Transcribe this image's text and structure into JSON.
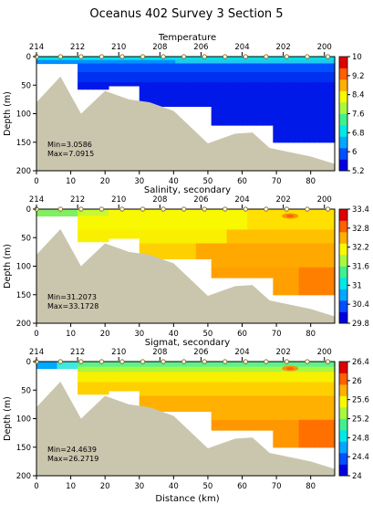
{
  "figure_title": "Oceanus 402 Survey 3 Section 5",
  "chart_data": [
    {
      "type": "heatmap",
      "title": "Temperature",
      "xlabel": "",
      "ylabel": "Depth (m)",
      "xlim": [
        0,
        87
      ],
      "ylim": [
        200,
        0
      ],
      "x_ticks": [
        0,
        10,
        20,
        30,
        40,
        50,
        60,
        70,
        80
      ],
      "y_ticks": [
        0,
        50,
        100,
        150,
        200
      ],
      "station_ticks": [
        "214",
        "212",
        "210",
        "208",
        "206",
        "204",
        "202",
        "200"
      ],
      "stations_km": [
        0,
        7,
        13,
        19,
        25,
        31,
        37,
        43,
        49,
        55,
        61,
        67,
        73,
        79,
        85
      ],
      "bottom_profile": [
        [
          0,
          80
        ],
        [
          7,
          35
        ],
        [
          13,
          100
        ],
        [
          20,
          60
        ],
        [
          27,
          75
        ],
        [
          33,
          80
        ],
        [
          40,
          95
        ],
        [
          50,
          152
        ],
        [
          58,
          135
        ],
        [
          63,
          133
        ],
        [
          68,
          160
        ],
        [
          80,
          175
        ],
        [
          87,
          188
        ]
      ],
      "data_mask_bottom": [
        [
          0,
          0
        ],
        [
          12,
          0
        ],
        [
          12,
          55
        ],
        [
          20,
          55
        ],
        [
          20,
          50
        ],
        [
          30,
          50
        ],
        [
          30,
          85
        ],
        [
          50,
          85
        ],
        [
          50,
          120
        ],
        [
          68,
          120
        ],
        [
          68,
          150
        ],
        [
          87,
          150
        ]
      ],
      "colorbar_ticks": [
        "10",
        "9.2",
        "8.4",
        "7.6",
        "6.8",
        "6",
        "5.2"
      ],
      "colorbar_colors": [
        "#0000e0",
        "#0050ff",
        "#00a8ff",
        "#00e8e8",
        "#40f090",
        "#a8f840",
        "#f8f800",
        "#ffb000",
        "#ff6000",
        "#e00000"
      ],
      "vmin": 5.2,
      "vmax": 10,
      "annotation": [
        "Min=3.0586",
        "Max=7.0915"
      ],
      "pattern": "temperature"
    },
    {
      "type": "heatmap",
      "title": "Salinity, secondary",
      "xlabel": "",
      "ylabel": "Depth (m)",
      "xlim": [
        0,
        87
      ],
      "ylim": [
        200,
        0
      ],
      "x_ticks": [
        0,
        10,
        20,
        30,
        40,
        50,
        60,
        70,
        80
      ],
      "y_ticks": [
        0,
        50,
        100,
        150,
        200
      ],
      "station_ticks": [
        "214",
        "212",
        "210",
        "208",
        "206",
        "204",
        "202",
        "200"
      ],
      "stations_km": [
        0,
        7,
        13,
        19,
        25,
        31,
        37,
        43,
        49,
        55,
        61,
        67,
        73,
        79,
        85
      ],
      "bottom_profile": [
        [
          0,
          80
        ],
        [
          7,
          35
        ],
        [
          13,
          100
        ],
        [
          20,
          60
        ],
        [
          27,
          75
        ],
        [
          33,
          80
        ],
        [
          40,
          95
        ],
        [
          50,
          152
        ],
        [
          58,
          135
        ],
        [
          63,
          133
        ],
        [
          68,
          160
        ],
        [
          80,
          175
        ],
        [
          87,
          188
        ]
      ],
      "data_mask_bottom": [
        [
          0,
          0
        ],
        [
          12,
          0
        ],
        [
          12,
          55
        ],
        [
          20,
          55
        ],
        [
          20,
          50
        ],
        [
          30,
          50
        ],
        [
          30,
          85
        ],
        [
          50,
          85
        ],
        [
          50,
          120
        ],
        [
          68,
          120
        ],
        [
          68,
          150
        ],
        [
          87,
          150
        ]
      ],
      "colorbar_ticks": [
        "33.4",
        "32.8",
        "32.2",
        "31.6",
        "31",
        "30.4",
        "29.8"
      ],
      "colorbar_colors": [
        "#0000e0",
        "#0050ff",
        "#00a8ff",
        "#00e8e8",
        "#40f090",
        "#a8f840",
        "#f8f800",
        "#ffb000",
        "#ff6000",
        "#e00000"
      ],
      "vmin": 29.8,
      "vmax": 33.4,
      "annotation": [
        "Min=31.2073",
        "Max=33.1728"
      ],
      "pattern": "salinity"
    },
    {
      "type": "heatmap",
      "title": "Sigmat, secondary",
      "xlabel": "Distance (km)",
      "ylabel": "Depth (m)",
      "xlim": [
        0,
        87
      ],
      "ylim": [
        200,
        0
      ],
      "x_ticks": [
        0,
        10,
        20,
        30,
        40,
        50,
        60,
        70,
        80
      ],
      "y_ticks": [
        0,
        50,
        100,
        150,
        200
      ],
      "station_ticks": [
        "214",
        "212",
        "210",
        "208",
        "206",
        "204",
        "202",
        "200"
      ],
      "stations_km": [
        0,
        7,
        13,
        19,
        25,
        31,
        37,
        43,
        49,
        55,
        61,
        67,
        73,
        79,
        85
      ],
      "bottom_profile": [
        [
          0,
          80
        ],
        [
          7,
          35
        ],
        [
          13,
          100
        ],
        [
          20,
          60
        ],
        [
          27,
          75
        ],
        [
          33,
          80
        ],
        [
          40,
          95
        ],
        [
          50,
          152
        ],
        [
          58,
          135
        ],
        [
          63,
          133
        ],
        [
          68,
          160
        ],
        [
          80,
          175
        ],
        [
          87,
          188
        ]
      ],
      "data_mask_bottom": [
        [
          0,
          0
        ],
        [
          12,
          0
        ],
        [
          12,
          55
        ],
        [
          20,
          55
        ],
        [
          20,
          50
        ],
        [
          30,
          50
        ],
        [
          30,
          85
        ],
        [
          50,
          85
        ],
        [
          50,
          120
        ],
        [
          68,
          120
        ],
        [
          68,
          150
        ],
        [
          87,
          150
        ]
      ],
      "colorbar_ticks": [
        "26.4",
        "26",
        "25.6",
        "25.2",
        "24.8",
        "24.4",
        "24"
      ],
      "colorbar_colors": [
        "#0000e0",
        "#0050ff",
        "#00a8ff",
        "#00e8e8",
        "#40f090",
        "#a8f840",
        "#f8f800",
        "#ffb000",
        "#ff6000",
        "#e00000"
      ],
      "vmin": 24,
      "vmax": 26.4,
      "annotation": [
        "Min=24.4639",
        "Max=26.2719"
      ],
      "pattern": "sigmat"
    }
  ]
}
